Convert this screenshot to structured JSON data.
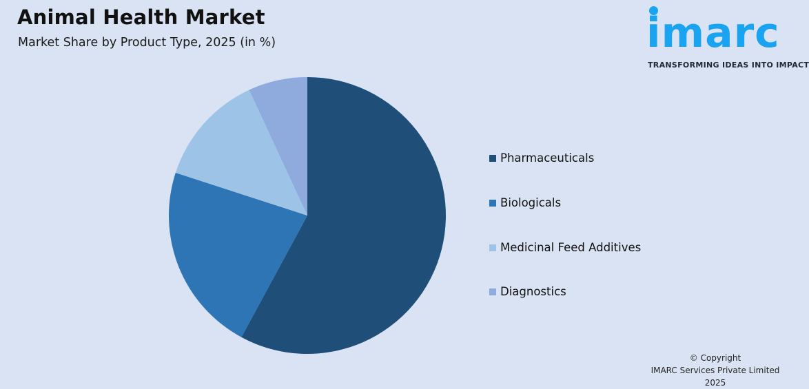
{
  "header": {
    "title": "Animal Health Market",
    "subtitle": "Market Share by Product Type, 2025 (in %)"
  },
  "logo": {
    "word": "imarc",
    "tagline": "TRANSFORMING IDEAS INTO IMPACT",
    "color": "#1aa3f0"
  },
  "footer": {
    "line1": "© Copyright",
    "line2": "IMARC Services Private Limited 2025"
  },
  "legend": {
    "items": [
      {
        "label": "Pharmaceuticals",
        "color": "#1f4e79"
      },
      {
        "label": "Biologicals",
        "color": "#2e75b6"
      },
      {
        "label": "Medicinal Feed Additives",
        "color": "#9dc3e6"
      },
      {
        "label": "Diagnostics",
        "color": "#8faadc"
      }
    ]
  },
  "chart_data": {
    "type": "pie",
    "title": "Animal Health Market",
    "subtitle": "Market Share by Product Type, 2025 (in %)",
    "categories": [
      "Pharmaceuticals",
      "Biologicals",
      "Medicinal Feed Additives",
      "Diagnostics"
    ],
    "values": [
      57.9,
      22.1,
      13.1,
      6.9
    ],
    "colors": [
      "#1f4e79",
      "#2e75b6",
      "#9dc3e6",
      "#8faadc"
    ],
    "start_angle": "12 o'clock, clockwise",
    "legend_position": "right",
    "data_labels": false
  }
}
